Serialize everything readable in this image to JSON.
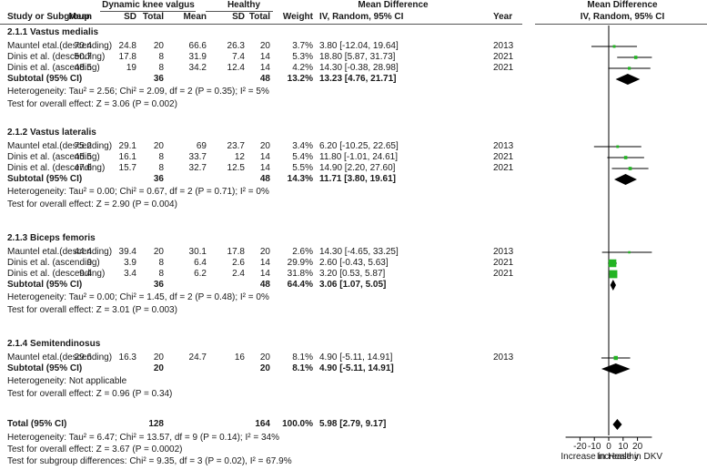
{
  "header": {
    "group1": "Dynamic knee valgus",
    "group2": "Healthy",
    "md_top": "Mean Difference",
    "md_top_plot": "Mean Difference",
    "col_study": "Study or Subgroup",
    "col_mean1": "Mean",
    "col_sd1": "SD",
    "col_total1": "Total",
    "col_mean2": "Mean",
    "col_sd2": "SD",
    "col_total2": "Total",
    "col_weight": "Weight",
    "col_md": "IV, Random, 95% CI",
    "col_year": "Year",
    "col_md_plot": "IV, Random, 95% CI"
  },
  "subgroups": [
    {
      "title": "2.1.1 Vastus medialis",
      "studies": [
        {
          "name": "Mauntel etal.(descending)",
          "mean1": "70.4",
          "sd1": "24.8",
          "n1": "20",
          "mean2": "66.6",
          "sd2": "26.3",
          "n2": "20",
          "weight": "3.7%",
          "ci_text": "3.80 [-12.04, 19.64]",
          "year": "2013"
        },
        {
          "name": "Dinis et al. (descending)",
          "mean1": "50.7",
          "sd1": "17.8",
          "n1": "8",
          "mean2": "31.9",
          "sd2": "7.4",
          "n2": "14",
          "weight": "5.3%",
          "ci_text": "18.80 [5.87, 31.73]",
          "year": "2021"
        },
        {
          "name": "Dinis et al. (ascending)",
          "mean1": "48.5",
          "sd1": "19",
          "n1": "8",
          "mean2": "34.2",
          "sd2": "12.4",
          "n2": "14",
          "weight": "4.2%",
          "ci_text": "14.30 [-0.38, 28.98]",
          "year": "2021"
        }
      ],
      "subtotal": {
        "label": "Subtotal (95% CI)",
        "n1": "36",
        "n2": "48",
        "weight": "13.2%",
        "ci_text": "13.23 [4.76, 21.71]"
      },
      "heterogeneity": "Heterogeneity: Tau² = 2.56; Chi² = 2.09, df = 2 (P = 0.35); I² = 5%",
      "overall": "Test for overall effect: Z = 3.06 (P = 0.002)"
    },
    {
      "title": "2.1.2 Vastus lateralis",
      "studies": [
        {
          "name": "Mauntel etal.(descending)",
          "mean1": "75.2",
          "sd1": "29.1",
          "n1": "20",
          "mean2": "69",
          "sd2": "23.7",
          "n2": "20",
          "weight": "3.4%",
          "ci_text": "6.20 [-10.25, 22.65]",
          "year": "2013"
        },
        {
          "name": "Dinis et al. (ascending)",
          "mean1": "45.5",
          "sd1": "16.1",
          "n1": "8",
          "mean2": "33.7",
          "sd2": "12",
          "n2": "14",
          "weight": "5.4%",
          "ci_text": "11.80 [-1.01, 24.61]",
          "year": "2021"
        },
        {
          "name": "Dinis et al. (descending)",
          "mean1": "47.6",
          "sd1": "15.7",
          "n1": "8",
          "mean2": "32.7",
          "sd2": "12.5",
          "n2": "14",
          "weight": "5.5%",
          "ci_text": "14.90 [2.20, 27.60]",
          "year": "2021"
        }
      ],
      "subtotal": {
        "label": "Subtotal (95% CI)",
        "n1": "36",
        "n2": "48",
        "weight": "14.3%",
        "ci_text": "11.71 [3.80, 19.61]"
      },
      "heterogeneity": "Heterogeneity: Tau² = 0.00; Chi² = 0.67, df = 2 (P = 0.71); I² = 0%",
      "overall": "Test for overall effect: Z = 2.90 (P = 0.004)"
    },
    {
      "title": "2.1.3 Biceps femoris",
      "studies": [
        {
          "name": "Mauntel etal.(descending)",
          "mean1": "44.4",
          "sd1": "39.4",
          "n1": "20",
          "mean2": "30.1",
          "sd2": "17.8",
          "n2": "20",
          "weight": "2.6%",
          "ci_text": "14.30 [-4.65, 33.25]",
          "year": "2013"
        },
        {
          "name": "Dinis et al. (ascending)",
          "mean1": "9",
          "sd1": "3.9",
          "n1": "8",
          "mean2": "6.4",
          "sd2": "2.6",
          "n2": "14",
          "weight": "29.9%",
          "ci_text": "2.60 [-0.43, 5.63]",
          "year": "2021"
        },
        {
          "name": "Dinis et al. (descending)",
          "mean1": "9.4",
          "sd1": "3.4",
          "n1": "8",
          "mean2": "6.2",
          "sd2": "2.4",
          "n2": "14",
          "weight": "31.8%",
          "ci_text": "3.20 [0.53, 5.87]",
          "year": "2021"
        }
      ],
      "subtotal": {
        "label": "Subtotal (95% CI)",
        "n1": "36",
        "n2": "48",
        "weight": "64.4%",
        "ci_text": "3.06 [1.07, 5.05]"
      },
      "heterogeneity": "Heterogeneity: Tau² = 0.00; Chi² = 1.45, df = 2 (P = 0.48); I² = 0%",
      "overall": "Test for overall effect: Z = 3.01 (P = 0.003)"
    },
    {
      "title": "2.1.4 Semitendinosus",
      "studies": [
        {
          "name": "Mauntel etal.(descending)",
          "mean1": "29.6",
          "sd1": "16.3",
          "n1": "20",
          "mean2": "24.7",
          "sd2": "16",
          "n2": "20",
          "weight": "8.1%",
          "ci_text": "4.90 [-5.11, 14.91]",
          "year": "2013"
        }
      ],
      "subtotal": {
        "label": "Subtotal (95% CI)",
        "n1": "20",
        "n2": "20",
        "weight": "8.1%",
        "ci_text": "4.90 [-5.11, 14.91]"
      },
      "heterogeneity": "Heterogeneity: Not applicable",
      "overall": "Test for overall effect: Z = 0.96 (P = 0.34)"
    }
  ],
  "total": {
    "label": "Total (95% CI)",
    "n1": "128",
    "n2": "164",
    "weight": "100.0%",
    "ci_text": "5.98 [2.79, 9.17]"
  },
  "footer": {
    "heterogeneity": "Heterogeneity: Tau² = 6.47; Chi² = 13.57, df = 9 (P = 0.14); I² = 34%",
    "overall": "Test for overall effect: Z = 3.67 (P = 0.0002)",
    "subgroup": "Test for subgroup differences: Chi² = 9.35, df = 3 (P = 0.02), I² = 67.9%"
  },
  "chart_data": {
    "type": "forest",
    "xlim": [
      -30,
      30
    ],
    "ticks": [
      -20,
      -10,
      0,
      10,
      20
    ],
    "tick_labels": [
      "-20",
      "-10",
      "0",
      "10",
      "20"
    ],
    "favours_left": "Increase in Healthy",
    "favours_right": "Increase in DKV",
    "colors": {
      "study_marker": "#22b422",
      "ci_line": "#000000",
      "diamond": "#000000"
    },
    "studies": [
      {
        "subgroup": "2.1.1",
        "name": "Mauntel etal.(descending)",
        "md": 3.8,
        "lo": -12.04,
        "hi": 19.64,
        "weight": 3.7
      },
      {
        "subgroup": "2.1.1",
        "name": "Dinis et al. (descending)",
        "md": 18.8,
        "lo": 5.87,
        "hi": 31.73,
        "weight": 5.3
      },
      {
        "subgroup": "2.1.1",
        "name": "Dinis et al. (ascending)",
        "md": 14.3,
        "lo": -0.38,
        "hi": 28.98,
        "weight": 4.2
      },
      {
        "subgroup": "2.1.2",
        "name": "Mauntel etal.(descending)",
        "md": 6.2,
        "lo": -10.25,
        "hi": 22.65,
        "weight": 3.4
      },
      {
        "subgroup": "2.1.2",
        "name": "Dinis et al. (ascending)",
        "md": 11.8,
        "lo": -1.01,
        "hi": 24.61,
        "weight": 5.4
      },
      {
        "subgroup": "2.1.2",
        "name": "Dinis et al. (descending)",
        "md": 14.9,
        "lo": 2.2,
        "hi": 27.6,
        "weight": 5.5
      },
      {
        "subgroup": "2.1.3",
        "name": "Mauntel etal.(descending)",
        "md": 14.3,
        "lo": -4.65,
        "hi": 33.25,
        "weight": 2.6
      },
      {
        "subgroup": "2.1.3",
        "name": "Dinis et al. (ascending)",
        "md": 2.6,
        "lo": -0.43,
        "hi": 5.63,
        "weight": 29.9
      },
      {
        "subgroup": "2.1.3",
        "name": "Dinis et al. (descending)",
        "md": 3.2,
        "lo": 0.53,
        "hi": 5.87,
        "weight": 31.8
      },
      {
        "subgroup": "2.1.4",
        "name": "Mauntel etal.(descending)",
        "md": 4.9,
        "lo": -5.11,
        "hi": 14.91,
        "weight": 8.1
      }
    ],
    "subtotals": [
      {
        "subgroup": "2.1.1",
        "md": 13.23,
        "lo": 4.76,
        "hi": 21.71
      },
      {
        "subgroup": "2.1.2",
        "md": 11.71,
        "lo": 3.8,
        "hi": 19.61
      },
      {
        "subgroup": "2.1.3",
        "md": 3.06,
        "lo": 1.07,
        "hi": 5.05
      },
      {
        "subgroup": "2.1.4",
        "md": 4.9,
        "lo": -5.11,
        "hi": 14.91
      }
    ],
    "overall": {
      "md": 5.98,
      "lo": 2.79,
      "hi": 9.17
    }
  }
}
